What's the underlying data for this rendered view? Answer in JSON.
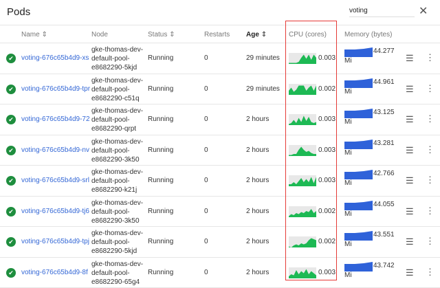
{
  "title": "Pods",
  "search": {
    "value": "voting"
  },
  "columns": {
    "name": "Name",
    "node": "Node",
    "status": "Status",
    "restarts": "Restarts",
    "age": "Age",
    "cpu": "CPU (cores)",
    "memory": "Memory (bytes)"
  },
  "sort_icon": "⇕",
  "colors": {
    "cpu": "#1db954",
    "memory": "#2f62d9",
    "link": "#3367d6",
    "highlight": "#e53935"
  },
  "rows": [
    {
      "name": "voting-676c65b4d9-xs",
      "node": [
        "gke-thomas-dev-",
        "default-pool-",
        "e8682290-5kjd"
      ],
      "status": "Running",
      "restarts": "0",
      "age": "29 minutes",
      "cpu": "0.003",
      "mem": "44.277",
      "unit": "Mi",
      "spark": [
        1,
        1,
        1,
        1,
        2,
        6,
        9,
        5,
        9,
        4,
        9,
        6
      ]
    },
    {
      "name": "voting-676c65b4d9-tpr",
      "node": [
        "gke-thomas-dev-",
        "default-pool-",
        "e8682290-c51q"
      ],
      "status": "Running",
      "restarts": "0",
      "age": "29 minutes",
      "cpu": "0.002",
      "mem": "44.961",
      "unit": "Mi",
      "spark": [
        4,
        7,
        3,
        5,
        9,
        9,
        9,
        4,
        7,
        9,
        4,
        9
      ]
    },
    {
      "name": "voting-676c65b4d9-72",
      "node": [
        "gke-thomas-dev-",
        "default-pool-",
        "e8682290-qrpt"
      ],
      "status": "Running",
      "restarts": "0",
      "age": "2 hours",
      "cpu": "0.003",
      "mem": "43.125",
      "unit": "Mi",
      "spark": [
        1,
        2,
        5,
        2,
        7,
        3,
        9,
        4,
        8,
        3,
        2,
        3
      ]
    },
    {
      "name": "voting-676c65b4d9-nv",
      "node": [
        "gke-thomas-dev-",
        "default-pool-",
        "e8682290-3k50"
      ],
      "status": "Running",
      "restarts": "0",
      "age": "2 hours",
      "cpu": "0.003",
      "mem": "43.281",
      "unit": "Mi",
      "spark": [
        1,
        1,
        2,
        2,
        6,
        9,
        6,
        4,
        5,
        3,
        2,
        2
      ]
    },
    {
      "name": "voting-676c65b4d9-srl",
      "node": [
        "gke-thomas-dev-",
        "default-pool-",
        "e8682290-k21j"
      ],
      "status": "Running",
      "restarts": "0",
      "age": "2 hours",
      "cpu": "0.003",
      "mem": "42.766",
      "unit": "Mi",
      "spark": [
        2,
        2,
        4,
        2,
        5,
        8,
        4,
        7,
        4,
        9,
        3,
        9
      ]
    },
    {
      "name": "voting-676c65b4d9-tj6",
      "node": [
        "gke-thomas-dev-",
        "default-pool-",
        "e8682290-3k50"
      ],
      "status": "Running",
      "restarts": "0",
      "age": "2 hours",
      "cpu": "0.002",
      "mem": "44.055",
      "unit": "Mi",
      "spark": [
        1,
        3,
        2,
        4,
        3,
        5,
        4,
        6,
        5,
        8,
        4,
        6
      ]
    },
    {
      "name": "voting-676c65b4d9-tpj",
      "node": [
        "gke-thomas-dev-",
        "default-pool-",
        "e8682290-5kjd"
      ],
      "status": "Running",
      "restarts": "0",
      "age": "2 hours",
      "cpu": "0.002",
      "mem": "43.551",
      "unit": "Mi",
      "spark": [
        1,
        0,
        2,
        3,
        2,
        4,
        3,
        4,
        7,
        9,
        8,
        7
      ]
    },
    {
      "name": "voting-676c65b4d9-8f",
      "node": [
        "gke-thomas-dev-",
        "default-pool-",
        "e8682290-65g4"
      ],
      "status": "Running",
      "restarts": "0",
      "age": "2 hours",
      "cpu": "0.003",
      "mem": "43.742",
      "unit": "Mi",
      "spark": [
        2,
        4,
        3,
        8,
        4,
        7,
        5,
        9,
        4,
        7,
        5,
        3
      ]
    }
  ]
}
